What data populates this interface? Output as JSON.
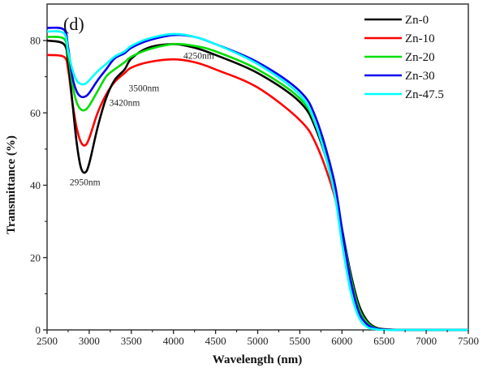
{
  "chart_data": {
    "type": "line",
    "panel_label": "(d)",
    "title": "",
    "xlabel": "Wavelength (nm)",
    "ylabel": "Transmittance (%)",
    "xlim": [
      2500,
      7500
    ],
    "ylim": [
      0,
      88
    ],
    "x_ticks": [
      2500,
      3000,
      3500,
      4000,
      4500,
      5000,
      5500,
      6000,
      6500,
      7000,
      7500
    ],
    "x_tick_labels": [
      "2500",
      "3000",
      "3500",
      "4000",
      "4500",
      "5000",
      "5500",
      "6000",
      "6500",
      "7000",
      "7500"
    ],
    "y_ticks": [
      0,
      20,
      40,
      60,
      80
    ],
    "y_tick_labels": [
      "0",
      "20",
      "40",
      "60",
      "80"
    ],
    "grid": false,
    "legend_position": "top-right",
    "x": [
      2500,
      2700,
      2750,
      2800,
      2850,
      2900,
      2950,
      3000,
      3100,
      3200,
      3300,
      3420,
      3500,
      3700,
      4000,
      4250,
      4500,
      5000,
      5500,
      5700,
      5900,
      6000,
      6100,
      6200,
      6300,
      6400,
      6500,
      6700,
      7000,
      7500
    ],
    "series": [
      {
        "name": "Zn-0",
        "color": "#000000",
        "values": [
          80,
          79,
          74,
          63,
          52,
          45,
          43.5,
          46,
          56,
          64,
          69,
          72,
          75,
          78,
          79,
          78,
          76,
          71,
          63,
          55,
          40,
          28,
          16,
          7,
          2.5,
          0.7,
          0.2,
          0,
          0,
          0
        ]
      },
      {
        "name": "Zn-10",
        "color": "#ff0000",
        "values": [
          76,
          75.5,
          72,
          63,
          56,
          52,
          51,
          53,
          60,
          65,
          68.5,
          71,
          72.5,
          74,
          74.8,
          74,
          72,
          67,
          58,
          51,
          38,
          27,
          15,
          6,
          2,
          0.6,
          0.2,
          0,
          0,
          0
        ]
      },
      {
        "name": "Zn-20",
        "color": "#00dd00",
        "values": [
          81,
          80.5,
          76,
          68,
          63,
          61,
          60.8,
          62,
          66,
          70,
          72,
          74,
          75.5,
          77.5,
          79,
          78.5,
          77,
          72,
          64,
          56,
          41,
          28,
          15,
          6,
          2,
          0.5,
          0.1,
          0,
          0,
          0
        ]
      },
      {
        "name": "Zn-30",
        "color": "#0000ee",
        "values": [
          83.5,
          83,
          78,
          70,
          66,
          64.5,
          64.5,
          65.5,
          69,
          72,
          75,
          76.5,
          78,
          80,
          81.5,
          81,
          79,
          74,
          66,
          58,
          42,
          28,
          14,
          5,
          1.5,
          0.4,
          0.1,
          0,
          0,
          0
        ]
      },
      {
        "name": "Zn-47.5",
        "color": "#00ffff",
        "values": [
          82.5,
          82,
          77,
          72,
          69,
          68,
          68,
          69,
          71.5,
          73.5,
          75.5,
          77,
          78.5,
          80.5,
          81.8,
          81,
          79,
          73.5,
          65,
          56,
          39,
          24,
          11,
          3.5,
          0.8,
          0.2,
          0,
          0,
          0,
          0
        ]
      }
    ],
    "annotations": [
      {
        "text": "2950nm",
        "x": 2950,
        "y": 40
      },
      {
        "text": "3420nm",
        "x": 3420,
        "y": 62
      },
      {
        "text": "3500nm",
        "x": 3650,
        "y": 66
      },
      {
        "text": "4250nm",
        "x": 4300,
        "y": 75
      }
    ]
  }
}
